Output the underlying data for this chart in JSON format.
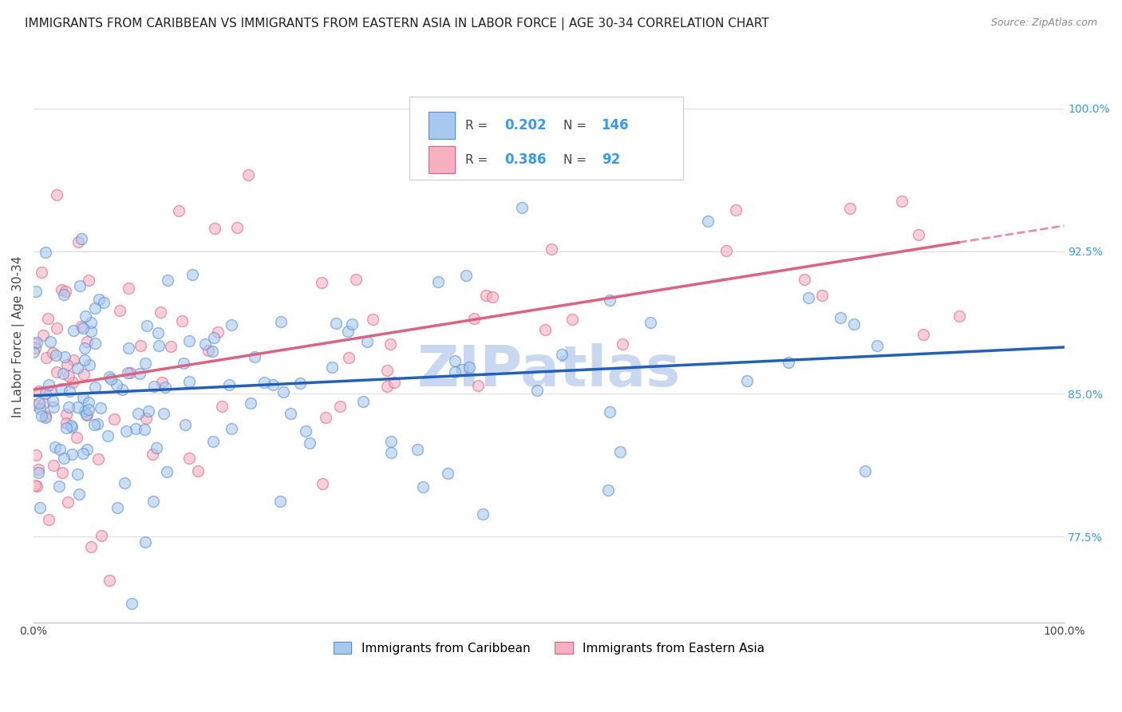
{
  "title": "IMMIGRANTS FROM CARIBBEAN VS IMMIGRANTS FROM EASTERN ASIA IN LABOR FORCE | AGE 30-34 CORRELATION CHART",
  "source": "Source: ZipAtlas.com",
  "ylabel": "In Labor Force | Age 30-34",
  "x_min": 0.0,
  "x_max": 100.0,
  "y_min": 73.0,
  "y_max": 103.0,
  "caribbean_R": 0.202,
  "caribbean_N": 146,
  "eastern_asia_R": 0.386,
  "eastern_asia_N": 92,
  "caribbean_color": "#A8C8F0",
  "eastern_asia_color": "#F8B0C0",
  "caribbean_edge_color": "#5090D0",
  "eastern_asia_edge_color": "#E06080",
  "caribbean_line_color": "#2060C0",
  "eastern_asia_line_color": "#E06080",
  "background_color": "#FFFFFF",
  "grid_color": "#DDDDDD",
  "title_fontsize": 11,
  "source_fontsize": 9,
  "axis_label_fontsize": 11,
  "tick_fontsize": 10,
  "watermark_text": "ZIPatlas",
  "watermark_color": "#C8D8F0",
  "watermark_fontsize": 52,
  "scatter_size": 100,
  "scatter_alpha": 0.6,
  "scatter_linewidth": 1.0,
  "y_ticks": [
    77.5,
    85.0,
    92.5,
    100.0
  ],
  "legend_R1": "0.202",
  "legend_N1": "146",
  "legend_R2": "0.386",
  "legend_N2": "92"
}
